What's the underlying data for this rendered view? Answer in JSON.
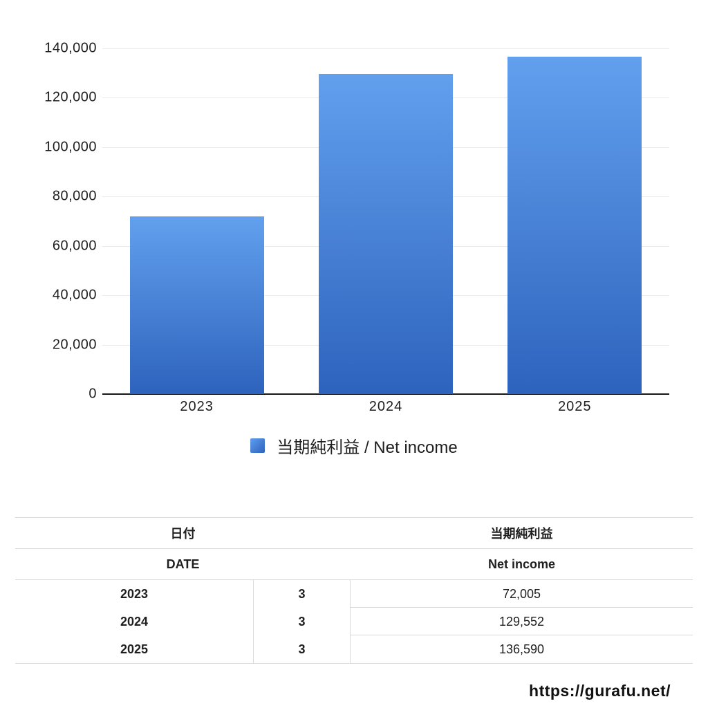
{
  "chart_data": {
    "type": "bar",
    "categories": [
      "2023",
      "2024",
      "2025"
    ],
    "values": [
      72005,
      129552,
      136590
    ],
    "series_name": "当期純利益 / Net income",
    "title": "",
    "xlabel": "",
    "ylabel": "",
    "ylim": [
      0,
      140000
    ],
    "ytick_step": 20000,
    "ytick_labels": [
      "0",
      "20,000",
      "40,000",
      "60,000",
      "80,000",
      "100,000",
      "120,000",
      "140,000"
    ],
    "grid": true,
    "legend_position": "bottom",
    "bar_color_top": "#62a0ee",
    "bar_color_bottom": "#2e63bd",
    "grid_color": "#eaeaea",
    "axis_color": "#161616"
  },
  "legend": {
    "label": "当期純利益 / Net income"
  },
  "table": {
    "header": {
      "date_jp": "日付",
      "date_en": "DATE",
      "value_jp": "当期純利益",
      "value_en": "Net income"
    },
    "rows": [
      {
        "year": "2023",
        "month": "3",
        "value": "72,005"
      },
      {
        "year": "2024",
        "month": "3",
        "value": "129,552"
      },
      {
        "year": "2025",
        "month": "3",
        "value": "136,590"
      }
    ]
  },
  "footer": {
    "url": "https://gurafu.net/"
  }
}
